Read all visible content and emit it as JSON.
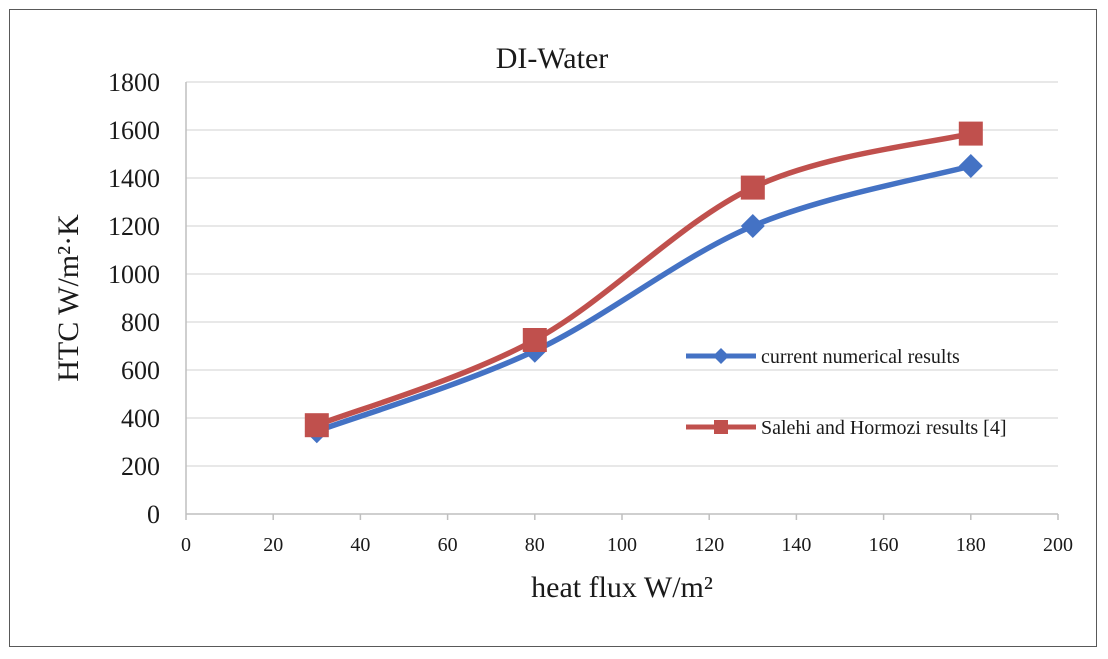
{
  "chart_data": {
    "type": "line",
    "title": "DI-Water",
    "xlabel": "heat flux W/m²",
    "ylabel": "HTC W/m²·K",
    "xlim": [
      0,
      200
    ],
    "ylim": [
      0,
      1800
    ],
    "xticks": [
      0,
      20,
      40,
      60,
      80,
      100,
      120,
      140,
      160,
      180,
      200
    ],
    "yticks": [
      0,
      200,
      400,
      600,
      800,
      1000,
      1200,
      1400,
      1600,
      1800
    ],
    "grid": true,
    "legend_position": "right",
    "series": [
      {
        "name": "current numerical results",
        "color": "#4472C4",
        "marker": "diamond",
        "x": [
          30,
          80,
          130,
          180
        ],
        "y": [
          345,
          680,
          1200,
          1450
        ]
      },
      {
        "name": "Salehi and Hormozi results [4]",
        "color": "#C0504D",
        "marker": "square",
        "x": [
          30,
          80,
          130,
          180
        ],
        "y": [
          370,
          725,
          1360,
          1585
        ]
      }
    ]
  }
}
